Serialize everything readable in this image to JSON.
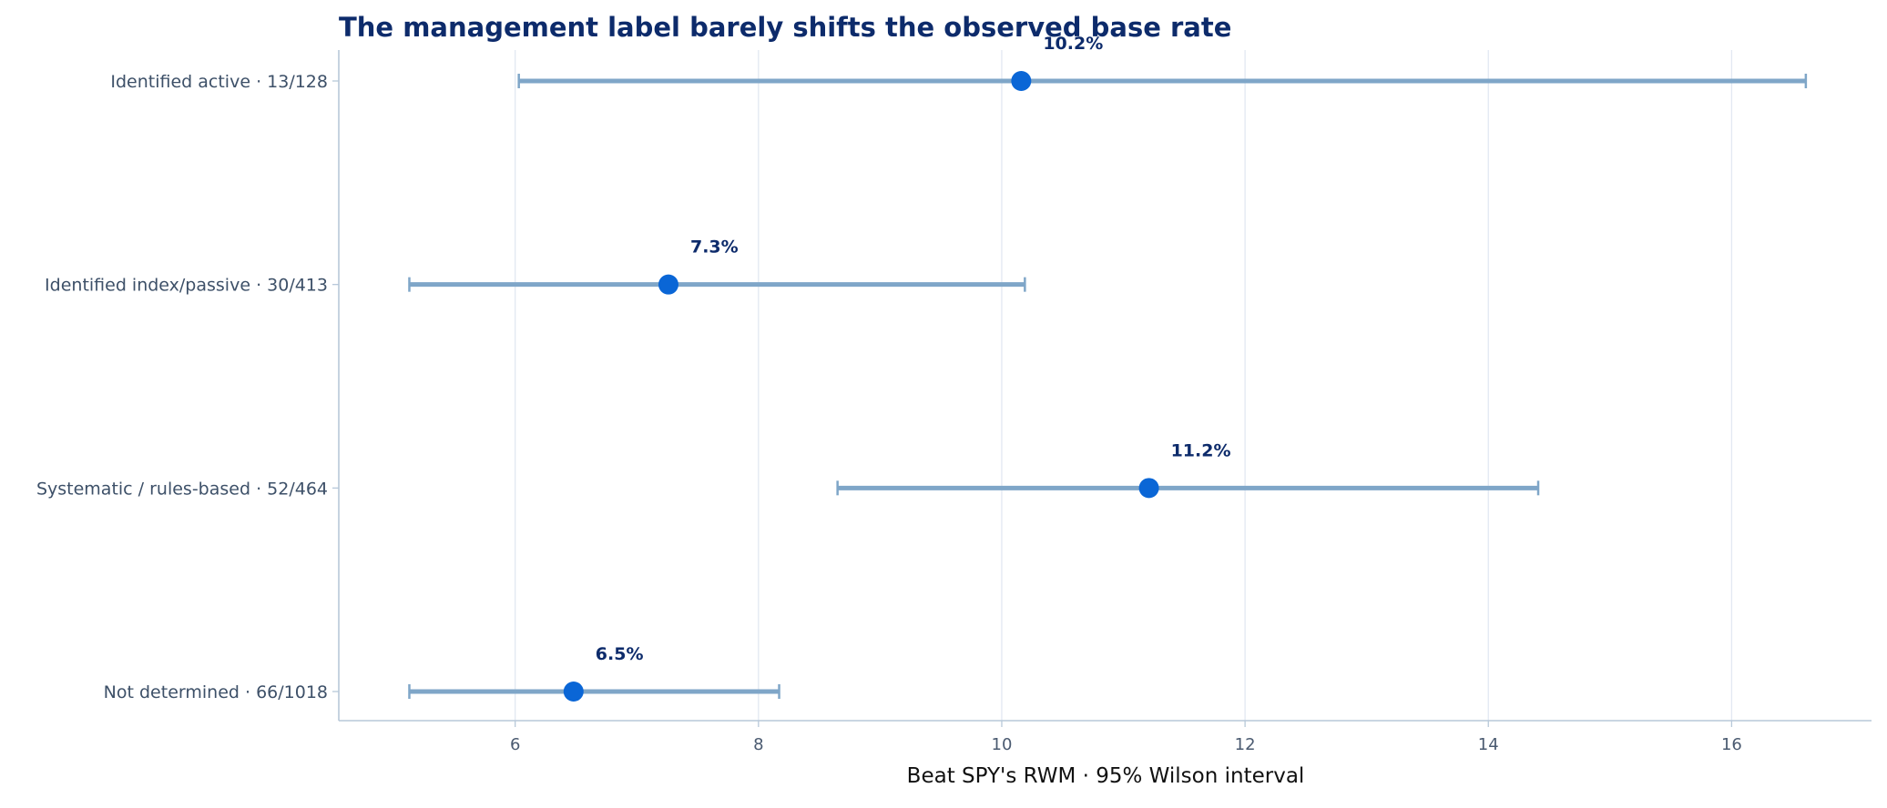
{
  "chart_data": {
    "type": "dot-interval",
    "title": "The management label barely shifts the observed base rate",
    "xlabel": "Beat SPY's RWM · 95% Wilson interval",
    "ylabel": "",
    "xlim": [
      4.55,
      17.15
    ],
    "xticks": [
      6,
      8,
      10,
      12,
      14,
      16
    ],
    "grid": "vertical",
    "legend": "none",
    "categories": [
      "Identified active · 13/128",
      "Identified index/passive · 30/413",
      "Systematic / rules-based · 52/464",
      "Not determined · 66/1018"
    ],
    "series": [
      {
        "values": [
          10.16,
          7.26,
          11.21,
          6.48
        ],
        "lower": [
          6.03,
          5.13,
          8.65,
          5.13
        ],
        "upper": [
          16.61,
          10.19,
          14.41,
          8.17
        ],
        "value_labels": [
          "10.2%",
          "7.3%",
          "11.2%",
          "6.5%"
        ]
      }
    ],
    "colors": {
      "title": "#0d2b6b",
      "point": "#0a66d6",
      "interval": "#7fa6c8",
      "grid": "#e2e8f2",
      "axis": "#b7c8d9",
      "tick_text": "#4a5a70",
      "category_text": "#3d5068",
      "value_label": "#0d2b6b",
      "xlabel": "#111111"
    }
  }
}
